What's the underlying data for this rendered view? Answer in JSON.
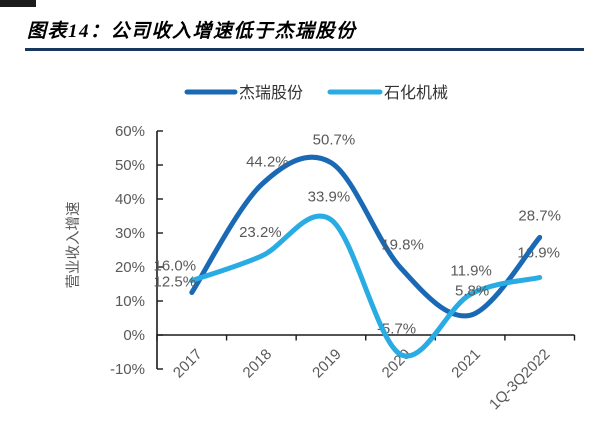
{
  "header": {
    "title": "图表14：公司收入增速低于杰瑞股份",
    "rule_color": "#17375E"
  },
  "chart_data": {
    "type": "line",
    "title": "图表14：公司收入增速低于杰瑞股份",
    "categories": [
      "2017",
      "2018",
      "2019",
      "2020",
      "2021",
      "1Q-3Q2022"
    ],
    "series": [
      {
        "name": "杰瑞股份",
        "color": "#1A69B5",
        "values": [
          12.5,
          44.2,
          50.7,
          19.8,
          5.8,
          28.7
        ],
        "data_labels": [
          "12.5%",
          "44.2%",
          "50.7%",
          "19.8%",
          "5.8%",
          "28.7%"
        ],
        "label_offsets": [
          [
            -17,
            -11
          ],
          [
            6,
            -23
          ],
          [
            3,
            -23
          ],
          [
            2,
            -23
          ],
          [
            2,
            -25
          ],
          [
            0,
            -22
          ]
        ]
      },
      {
        "name": "石化机械",
        "color": "#29ACE3",
        "values": [
          16.0,
          23.2,
          33.9,
          -5.7,
          11.9,
          16.9
        ],
        "data_labels": [
          "16.0%",
          "23.2%",
          "33.9%",
          "-5.7%",
          "11.9%",
          "16.9%"
        ],
        "label_offsets": [
          [
            -17,
            -15
          ],
          [
            -1,
            -24
          ],
          [
            -2,
            -23
          ],
          [
            -4,
            -26
          ],
          [
            1,
            -24
          ],
          [
            -1,
            -25
          ]
        ]
      }
    ],
    "ylabel": "营业收入增速",
    "ylim": [
      -10,
      60
    ],
    "ytick_step": 10,
    "ytick_suffix": "%",
    "legend_position": "top",
    "grid": false,
    "axis_color": "#1a1a1a",
    "tick_label_color": "#595959",
    "data_label_color": "#595959",
    "legend_text_color": "#333333"
  }
}
